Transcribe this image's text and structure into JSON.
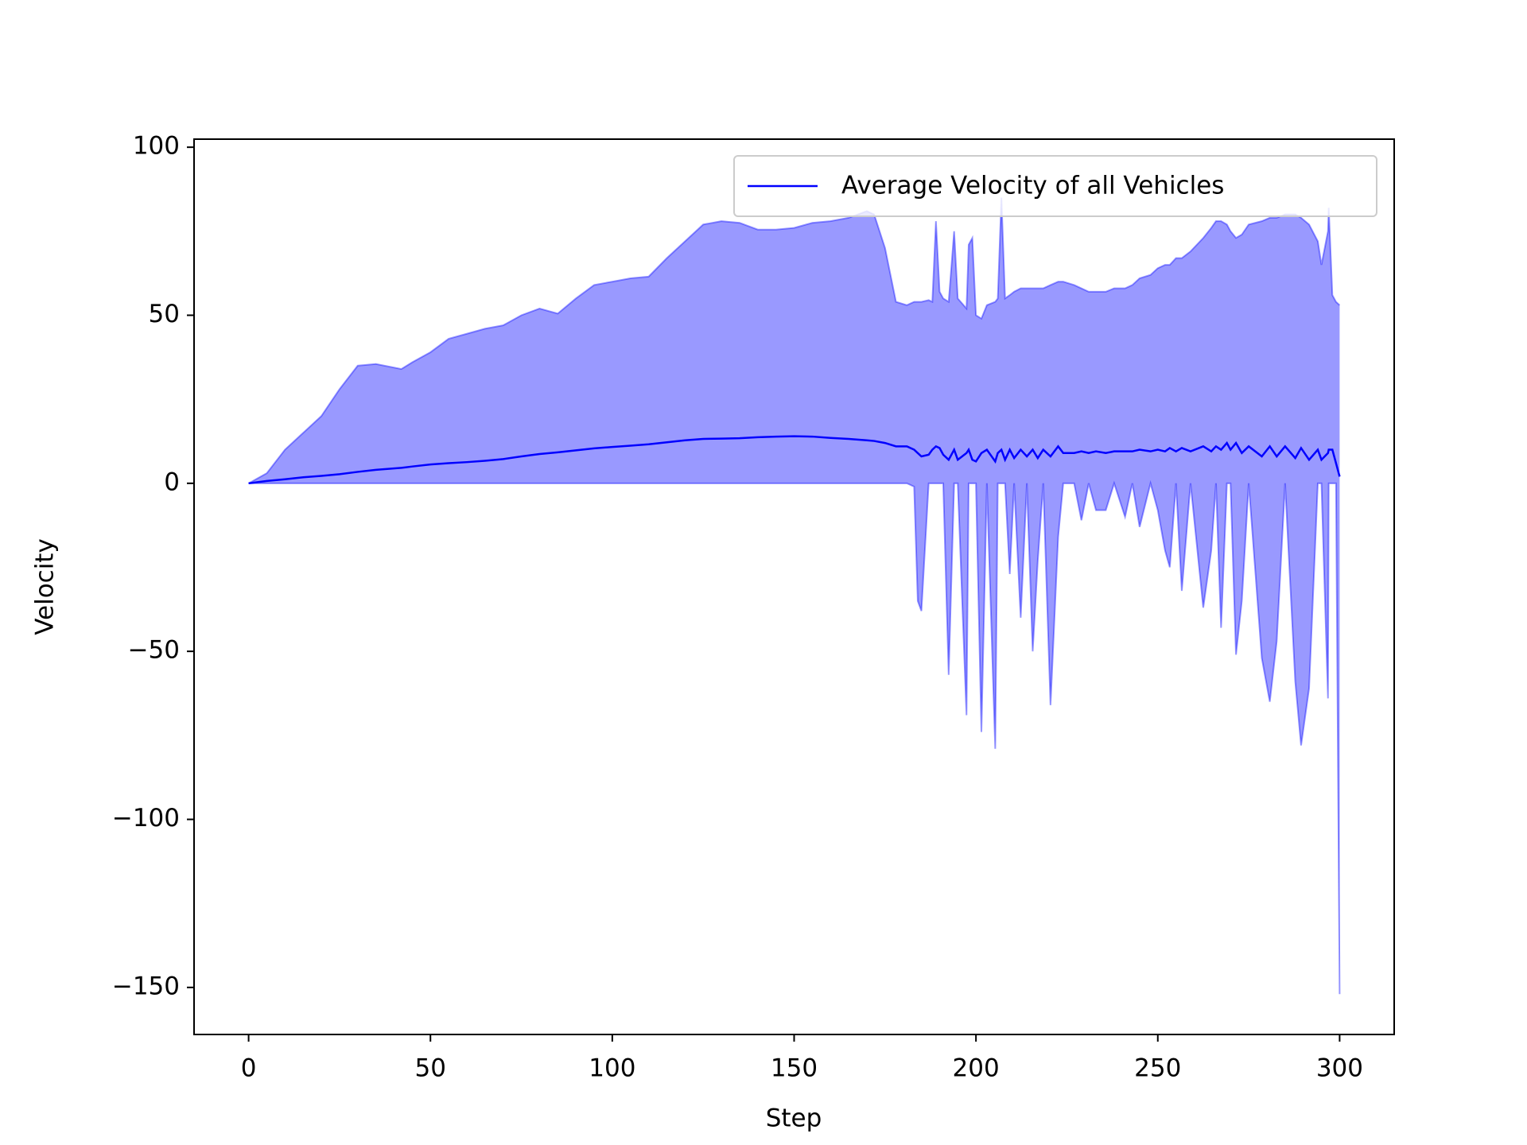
{
  "chart_data": {
    "type": "line",
    "xlabel": "Step",
    "ylabel": "Velocity",
    "x": [
      0,
      5,
      10,
      15,
      20,
      25,
      30,
      35,
      42,
      45,
      50,
      55,
      60,
      65,
      70,
      75,
      80,
      85,
      90,
      95,
      100,
      105,
      110,
      115,
      120,
      125,
      130,
      135,
      140,
      145,
      150,
      155,
      160,
      165,
      170,
      172,
      175,
      178,
      181,
      183,
      184,
      185,
      187,
      188,
      189,
      190,
      191,
      192.5,
      194,
      195,
      197.4,
      198,
      199,
      200,
      201.5,
      203,
      205.3,
      206,
      207,
      208,
      209.3,
      210.5,
      212.3,
      214,
      215.6,
      217,
      218.5,
      220.5,
      222.6,
      224,
      227,
      229,
      231,
      233,
      235.7,
      238,
      241,
      243,
      245,
      248,
      250,
      252,
      253.3,
      255,
      256.6,
      259,
      262.5,
      264.7,
      266,
      267.4,
      269,
      270,
      271.5,
      273.1,
      275,
      278.6,
      280.8,
      282.7,
      285,
      287.8,
      289.4,
      291.6,
      294,
      295,
      296.8,
      297,
      298,
      299,
      300
    ],
    "series": [
      {
        "name": "Average Velocity of all Vehicles",
        "color": "#0000ff",
        "values": [
          0,
          0.7,
          1.2,
          1.8,
          2.2,
          2.7,
          3.4,
          4,
          4.6,
          5,
          5.6,
          6,
          6.3,
          6.7,
          7.2,
          8,
          8.7,
          9.2,
          9.8,
          10.4,
          10.8,
          11.2,
          11.6,
          12.2,
          12.8,
          13.2,
          13.3,
          13.4,
          13.7,
          13.9,
          14,
          13.9,
          13.5,
          13.2,
          12.8,
          12.6,
          12,
          11,
          11,
          10,
          9,
          8,
          8.5,
          10,
          11,
          10.5,
          8.5,
          7,
          10,
          7,
          9,
          10,
          7,
          6.5,
          9,
          10,
          6.5,
          9,
          10,
          7,
          10,
          7.5,
          10,
          8,
          10,
          7.5,
          10,
          8,
          11,
          9,
          9,
          9.5,
          9,
          9.5,
          9,
          9.5,
          9.5,
          9.5,
          10,
          9.5,
          10,
          9.5,
          10.5,
          9.5,
          10.5,
          9.5,
          11,
          9.5,
          11,
          10,
          12,
          10,
          12,
          9,
          11,
          8,
          11,
          8,
          11,
          7.5,
          10.5,
          7,
          10,
          7,
          9,
          10,
          10,
          6,
          2
        ]
      }
    ],
    "band": {
      "color": "#0000ff",
      "opacity": 0.4,
      "upper": [
        0,
        3,
        10,
        15,
        20,
        28,
        35,
        35.5,
        34,
        36,
        39,
        43,
        44.5,
        46,
        47,
        50,
        52,
        50.5,
        55,
        59,
        60,
        61,
        61.5,
        67,
        72,
        77,
        78,
        77.5,
        75.5,
        75.5,
        76,
        77.5,
        78,
        79,
        81,
        80,
        70,
        54,
        53,
        54,
        54,
        54,
        54.5,
        54,
        78,
        57,
        55,
        54,
        75,
        55,
        52,
        71,
        73,
        50,
        49,
        53,
        54,
        55,
        85,
        55,
        56,
        57,
        58,
        58,
        58,
        58,
        58,
        59,
        60,
        60,
        59,
        58,
        57,
        57,
        57,
        58,
        58,
        59,
        61,
        62,
        64,
        65,
        65,
        67,
        67,
        69,
        73,
        76,
        78,
        78,
        77,
        75,
        73,
        74,
        77,
        78,
        79,
        79,
        80,
        80,
        79,
        77,
        72,
        65,
        75,
        82,
        56,
        54,
        53
      ],
      "lower": [
        0,
        0,
        0,
        0,
        0,
        0,
        0,
        0,
        0,
        0,
        0,
        0,
        0,
        0,
        0,
        0,
        0,
        0,
        0,
        0,
        0,
        0,
        0,
        0,
        0,
        0,
        0,
        0,
        0,
        0,
        0,
        0,
        0,
        0,
        0,
        0,
        0,
        0,
        0,
        -1,
        -35,
        -38,
        0,
        0,
        0,
        0,
        0,
        -57,
        0,
        0,
        -69,
        0,
        0,
        0,
        -74,
        0,
        -79,
        0,
        0,
        0,
        -27,
        0,
        -40,
        0,
        -50,
        -23,
        0,
        -66,
        -16,
        0,
        0,
        -11,
        0,
        -8,
        -8,
        0,
        -10,
        0,
        -13,
        0,
        -8,
        -20,
        -25,
        0,
        -32,
        0,
        -37,
        -20,
        0,
        -43,
        0,
        0,
        -51,
        -35,
        0,
        -52,
        -65,
        -47,
        0,
        -59,
        -78,
        -61,
        0,
        0,
        -64,
        0,
        0,
        0,
        -152
      ]
    },
    "xlim": [
      -15,
      315
    ],
    "ylim": [
      -164,
      102.4
    ],
    "xticks": [
      0,
      50,
      100,
      150,
      200,
      250,
      300
    ],
    "yticks": [
      {
        "value": -150,
        "label": "−150"
      },
      {
        "value": -100,
        "label": "−100"
      },
      {
        "value": -50,
        "label": "−50"
      },
      0,
      50,
      100
    ],
    "legend": "upper right"
  }
}
